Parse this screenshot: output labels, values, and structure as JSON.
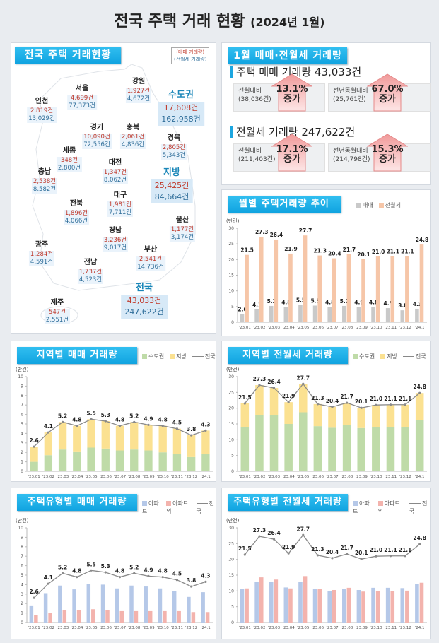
{
  "title": {
    "main": "전국 주택 거래 현황",
    "sub": "(2024년 1월)"
  },
  "map": {
    "header": "전국 주택 거래현황",
    "legend": {
      "sale": "(매매 거래량)",
      "rent": "(전월세 거래량)"
    },
    "regions": [
      {
        "name": "인천",
        "sale": "2,819건",
        "rent": "13,029건"
      },
      {
        "name": "서울",
        "sale": "4,699건",
        "rent": "77,373건"
      },
      {
        "name": "강원",
        "sale": "1,927건",
        "rent": "4,672건"
      },
      {
        "name": "경기",
        "sale": "10,090건",
        "rent": "72,556건"
      },
      {
        "name": "충북",
        "sale": "2,061건",
        "rent": "4,836건"
      },
      {
        "name": "경북",
        "sale": "2,805건",
        "rent": "5,343건"
      },
      {
        "name": "세종",
        "sale": "348건",
        "rent": "2,800건"
      },
      {
        "name": "대전",
        "sale": "1,347건",
        "rent": "8,062건"
      },
      {
        "name": "충남",
        "sale": "2,538건",
        "rent": "8,582건"
      },
      {
        "name": "전북",
        "sale": "1,896건",
        "rent": "4,066건"
      },
      {
        "name": "대구",
        "sale": "1,981건",
        "rent": "7,711건"
      },
      {
        "name": "울산",
        "sale": "1,177건",
        "rent": "3,174건"
      },
      {
        "name": "경남",
        "sale": "3,236건",
        "rent": "9,017건"
      },
      {
        "name": "광주",
        "sale": "1,284건",
        "rent": "4,591건"
      },
      {
        "name": "부산",
        "sale": "2,541건",
        "rent": "14,736건"
      },
      {
        "name": "전남",
        "sale": "1,737건",
        "rent": "4,523건"
      },
      {
        "name": "제주",
        "sale": "547건",
        "rent": "2,551건"
      }
    ],
    "totals": [
      {
        "name": "수도권",
        "sale": "17,608건",
        "rent": "162,958건"
      },
      {
        "name": "지방",
        "sale": "25,425건",
        "rent": "84,664건"
      },
      {
        "name": "전국",
        "sale": "43,033건",
        "rent": "247,622건"
      }
    ]
  },
  "summary": {
    "header": "1월 매매·전월세 거래량",
    "sale": {
      "label": "주택 매매 거래량 43,033건",
      "mom": {
        "label": "전월대비",
        "base": "(38,036건)",
        "pct": "13.1%",
        "dir": "증가"
      },
      "yoy": {
        "label": "전년동월대비",
        "base": "(25,761건)",
        "pct": "67.0%",
        "dir": "증가"
      }
    },
    "rent": {
      "label": "전월세 거래량 247,622건",
      "mom": {
        "label": "전월대비",
        "base": "(211,403건)",
        "pct": "17.1%",
        "dir": "증가"
      },
      "yoy": {
        "label": "전년동월대비",
        "base": "(214,798건)",
        "pct": "15.3%",
        "dir": "증가"
      }
    }
  },
  "colors": {
    "accent": "#1ca6e0",
    "sale_text": "#c0392b",
    "rent_text": "#2e6d99",
    "gray": "#c9c9c9",
    "peach": "#f6c6a8",
    "green": "#bfdba8",
    "yellow": "#fbe191",
    "blue": "#b5c8e8",
    "pink": "#f3b3ad",
    "line": "#8a8a8a"
  },
  "chart_data": [
    {
      "id": "monthly",
      "type": "bar",
      "title": "월별 주택거래량 추이",
      "ylabel": "(만건)",
      "ylim": [
        0,
        30
      ],
      "yticks": [
        0,
        5,
        10,
        15,
        20,
        25,
        30
      ],
      "categories": [
        "'23.01",
        "'23.02",
        "'23.03",
        "'23.04",
        "'23.05",
        "'23.06",
        "'23.07",
        "'23.08",
        "'23.09",
        "'23.10",
        "'23.11",
        "'23.12",
        "'24.1"
      ],
      "series": [
        {
          "name": "매매",
          "color": "#c9c9c9",
          "values": [
            2.6,
            4.1,
            5.2,
            4.8,
            5.5,
            5.3,
            4.8,
            5.2,
            4.9,
            4.8,
            4.5,
            3.8,
            4.3
          ]
        },
        {
          "name": "전월세",
          "color": "#f6c6a8",
          "values": [
            21.5,
            27.3,
            26.4,
            21.9,
            27.7,
            21.3,
            20.4,
            21.7,
            20.1,
            21.0,
            21.1,
            21.1,
            24.8
          ]
        }
      ]
    },
    {
      "id": "region-sale",
      "type": "bar",
      "stacked": true,
      "title": "지역별 매매 거래량",
      "ylabel": "(만건)",
      "ylim": [
        0,
        10
      ],
      "yticks": [
        0,
        1,
        2,
        3,
        4,
        5,
        6,
        7,
        8,
        9,
        10
      ],
      "categories": [
        "'23.01",
        "'23.02",
        "'23.03",
        "'23.04",
        "'23.05",
        "'23.06",
        "'23.07",
        "'23.08",
        "'23.09",
        "'23.10",
        "'23.11",
        "'23.12",
        "'24.1"
      ],
      "series": [
        {
          "name": "수도권",
          "color": "#bfdba8",
          "values": [
            1.0,
            1.7,
            2.3,
            2.1,
            2.5,
            2.4,
            2.2,
            2.3,
            2.2,
            2.0,
            1.8,
            1.5,
            1.8
          ]
        },
        {
          "name": "지방",
          "color": "#fbe191",
          "values": [
            1.6,
            2.4,
            2.9,
            2.7,
            3.0,
            2.9,
            2.6,
            2.9,
            2.7,
            2.8,
            2.7,
            2.3,
            2.5
          ]
        }
      ],
      "line": {
        "name": "전국",
        "color": "#8a8a8a",
        "values": [
          2.6,
          4.1,
          5.2,
          4.8,
          5.5,
          5.3,
          4.8,
          5.2,
          4.9,
          4.8,
          4.5,
          3.8,
          4.3
        ]
      }
    },
    {
      "id": "region-rent",
      "type": "bar",
      "stacked": true,
      "title": "지역별 전월세 거래량",
      "ylabel": "(만건)",
      "ylim": [
        0,
        30
      ],
      "yticks": [
        0,
        5,
        10,
        15,
        20,
        25,
        30
      ],
      "categories": [
        "'23.01",
        "'23.02",
        "'23.03",
        "'23.04",
        "'23.05",
        "'23.06",
        "'23.07",
        "'23.08",
        "'23.09",
        "'23.10",
        "'23.11",
        "'23.12",
        "'24.1"
      ],
      "series": [
        {
          "name": "수도권",
          "color": "#bfdba8",
          "values": [
            14.0,
            17.7,
            17.8,
            15.0,
            18.7,
            14.3,
            13.8,
            14.7,
            13.7,
            14.1,
            14.0,
            14.0,
            16.3
          ]
        },
        {
          "name": "지방",
          "color": "#fbe191",
          "values": [
            7.5,
            9.6,
            8.6,
            6.9,
            9.0,
            7.0,
            6.6,
            7.0,
            6.4,
            6.9,
            7.1,
            7.1,
            8.5
          ]
        }
      ],
      "line": {
        "name": "전국",
        "color": "#8a8a8a",
        "values": [
          21.5,
          27.3,
          26.4,
          21.9,
          27.7,
          21.3,
          20.4,
          21.7,
          20.1,
          21.0,
          21.1,
          21.1,
          24.8
        ]
      }
    },
    {
      "id": "type-sale",
      "type": "bar",
      "title": "주택유형별 매매 거래량",
      "ylabel": "(만건)",
      "ylim": [
        0,
        10
      ],
      "yticks": [
        0,
        1,
        2,
        3,
        4,
        5,
        6,
        7,
        8,
        9,
        10
      ],
      "categories": [
        "'23.01",
        "'23.02",
        "'23.03",
        "'23.04",
        "'23.05",
        "'23.06",
        "'23.07",
        "'23.08",
        "'23.09",
        "'23.10",
        "'23.11",
        "'23.12",
        "'24.1"
      ],
      "series": [
        {
          "name": "아파트",
          "color": "#b5c8e8",
          "values": [
            1.8,
            3.1,
            3.9,
            3.5,
            4.1,
            4.0,
            3.6,
            3.9,
            3.8,
            3.6,
            3.3,
            2.7,
            3.2
          ]
        },
        {
          "name": "아파트 외",
          "color": "#f3b3ad",
          "values": [
            0.8,
            1.0,
            1.3,
            1.3,
            1.4,
            1.3,
            1.2,
            1.2,
            1.2,
            1.2,
            1.2,
            1.1,
            1.1
          ]
        }
      ],
      "line": {
        "name": "전국",
        "color": "#8a8a8a",
        "values": [
          2.6,
          4.1,
          5.2,
          4.8,
          5.5,
          5.3,
          4.8,
          5.2,
          4.9,
          4.8,
          4.5,
          3.8,
          4.3
        ]
      }
    },
    {
      "id": "type-rent",
      "type": "bar",
      "title": "주택유형별 전월세 거래량",
      "ylabel": "(만건)",
      "ylim": [
        0,
        30
      ],
      "yticks": [
        0,
        5,
        10,
        15,
        20,
        25,
        30
      ],
      "categories": [
        "'23.01",
        "'23.02",
        "'23.03",
        "'23.04",
        "'23.05",
        "'23.06",
        "'23.07",
        "'23.08",
        "'23.09",
        "'23.10",
        "'23.11",
        "'23.12",
        "'24.1"
      ],
      "series": [
        {
          "name": "아파트",
          "color": "#b5c8e8",
          "values": [
            10.6,
            12.9,
            12.8,
            11.1,
            12.9,
            10.7,
            10.0,
            10.6,
            10.3,
            11.0,
            11.0,
            10.9,
            12.1
          ]
        },
        {
          "name": "아파트 외",
          "color": "#f3b3ad",
          "values": [
            10.8,
            14.3,
            13.6,
            10.8,
            14.7,
            10.6,
            10.3,
            11.0,
            9.8,
            10.0,
            10.0,
            10.1,
            12.6
          ]
        }
      ],
      "line": {
        "name": "전국",
        "color": "#8a8a8a",
        "values": [
          21.5,
          27.3,
          26.4,
          21.9,
          27.7,
          21.3,
          20.4,
          21.7,
          20.1,
          21.0,
          21.1,
          21.1,
          24.8
        ]
      }
    }
  ]
}
